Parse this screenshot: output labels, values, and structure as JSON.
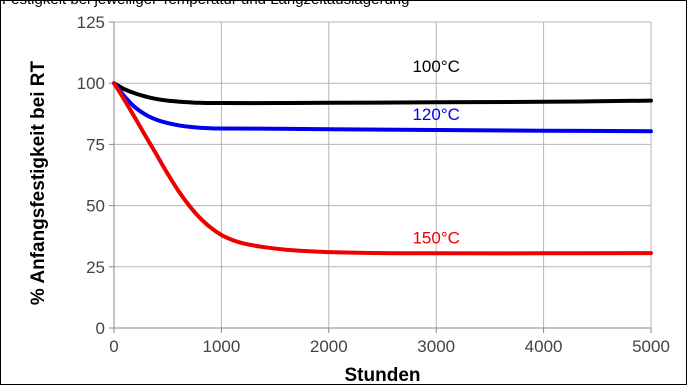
{
  "top_caption": "Festigkeit bei jeweiliger Temperatur und Langzeitauslagerung",
  "chart_data": {
    "type": "line",
    "title": "",
    "xlabel": "Stunden",
    "ylabel": "% Anfangsfestigkeit bei RT",
    "xlim": [
      0,
      5000
    ],
    "ylim": [
      0,
      125
    ],
    "xticks": [
      0,
      1000,
      2000,
      3000,
      4000,
      5000
    ],
    "yticks": [
      0,
      25,
      50,
      75,
      100,
      125
    ],
    "grid": true,
    "series": [
      {
        "name": "100°C",
        "color": "#000000",
        "x": [
          0,
          100,
          200,
          300,
          400,
          500,
          600,
          700,
          800,
          1000,
          1500,
          2000,
          3000,
          4000,
          4500,
          5000
        ],
        "y": [
          100,
          97.5,
          95.8,
          94.5,
          93.5,
          92.9,
          92.5,
          92.2,
          92.0,
          91.9,
          91.9,
          92.0,
          92.2,
          92.4,
          92.6,
          92.9
        ]
      },
      {
        "name": "120°C",
        "color": "#0000ee",
        "x": [
          0,
          100,
          200,
          300,
          400,
          500,
          600,
          700,
          800,
          900,
          1000,
          1500,
          2000,
          3000,
          4000,
          5000
        ],
        "y": [
          100,
          94.5,
          90.0,
          87.0,
          85.0,
          83.7,
          82.8,
          82.2,
          81.8,
          81.6,
          81.5,
          81.4,
          81.2,
          80.9,
          80.6,
          80.4
        ]
      },
      {
        "name": "150°C",
        "color": "#ee0000",
        "x": [
          0,
          100,
          200,
          300,
          400,
          500,
          600,
          700,
          800,
          900,
          1000,
          1100,
          1200,
          1400,
          1600,
          1800,
          2000,
          2500,
          3000,
          4000,
          5000
        ],
        "y": [
          100,
          93.0,
          85.5,
          78.0,
          70.5,
          63.0,
          56.0,
          50.0,
          45.0,
          41.0,
          38.0,
          36.0,
          34.6,
          33.0,
          32.0,
          31.4,
          31.0,
          30.6,
          30.5,
          30.5,
          30.6
        ]
      }
    ]
  }
}
